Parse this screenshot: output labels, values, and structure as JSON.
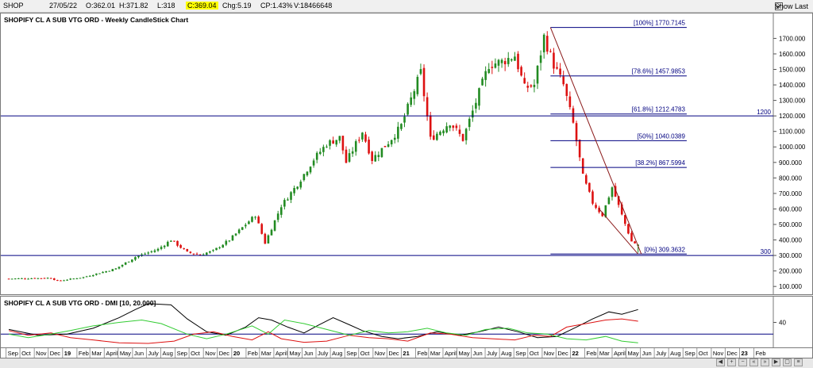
{
  "header": {
    "symbol": "SHOP",
    "date": "27/05/22",
    "open": "O:362.01",
    "high": "H:371.82",
    "low": "L:318",
    "close": "C:369.04",
    "change": "Chg:5.19",
    "change_pct": "CP:1.43%",
    "volume": "V:18466648",
    "show_last_label": "Show Last"
  },
  "price_panel": {
    "title": "SHOPIFY CL A SUB VTG ORD - Weekly CandleStick Chart"
  },
  "dmi_panel": {
    "title": "SHOPIFY CL A SUB VTG ORD - DMI [10, 20.000]"
  },
  "colors": {
    "up": "#228B22",
    "down": "#dd1111",
    "level": "#000080",
    "trend": "#8b1a1a",
    "dmi_adx": "#000000",
    "dmi_minus": "#dd1111",
    "dmi_plus": "#33cc33",
    "dmi_ref": "#000080"
  },
  "chart_data": [
    {
      "type": "candlestick",
      "title": "SHOPIFY CL A SUB VTG ORD - Weekly CandleStick Chart",
      "ylim": [
        60,
        1830
      ],
      "y_ticks": [
        100,
        200,
        300,
        400,
        500,
        600,
        700,
        800,
        900,
        1000,
        1100,
        1200,
        1300,
        1400,
        1500,
        1600,
        1700
      ],
      "y_tick_labels": [
        "100.000",
        "200.000",
        "300.000",
        "400.000",
        "500.000",
        "600.000",
        "700.000",
        "800.000",
        "900.000",
        "1000.000",
        "1100.000",
        "1200.000",
        "1300.000",
        "1400.000",
        "1500.000",
        "1600.000",
        "1700.000"
      ],
      "horizontal_levels": [
        {
          "value": 1200,
          "label": "1200"
        },
        {
          "value": 300,
          "label": "300"
        }
      ],
      "fibonacci_levels": [
        {
          "value": 1770.7145,
          "label": "[100%] 1770.7145"
        },
        {
          "value": 1457.9853,
          "label": "[78.6%] 1457.9853"
        },
        {
          "value": 1212.4783,
          "label": "[61.8%] 1212.4783"
        },
        {
          "value": 1040.0389,
          "label": "[50%] 1040.0389"
        },
        {
          "value": 867.5994,
          "label": "[38.2%] 867.5994"
        },
        {
          "value": 309.3632,
          "label": "[0%] 309.3632"
        }
      ],
      "trendlines": [
        {
          "from": {
            "x": "2021-11-19",
            "y": 1770
          },
          "to": {
            "x": "2022-06-03",
            "y": 309
          }
        },
        {
          "from": {
            "x": "2022-03-04",
            "y": 600
          },
          "to": {
            "x": "2022-05-27",
            "y": 309
          }
        }
      ],
      "x_axis": {
        "labels": [
          "Sep",
          "Oct",
          "Nov",
          "Dec",
          "19",
          "Feb",
          "Mar",
          "April",
          "May",
          "Jun",
          "July",
          "Aug",
          "Sep",
          "Oct",
          "Nov",
          "Dec",
          "20",
          "Feb",
          "Mar",
          "April",
          "May",
          "Jun",
          "July",
          "Aug",
          "Sep",
          "Oct",
          "Nov",
          "Dec",
          "21",
          "Feb",
          "Mar",
          "April",
          "May",
          "Jun",
          "July",
          "Aug",
          "Sep",
          "Oct",
          "Nov",
          "Dec",
          "22",
          "Feb",
          "Mar",
          "April",
          "May",
          "Jun",
          "July",
          "Aug",
          "Sep",
          "Oct",
          "Nov",
          "Dec",
          "23",
          "Feb"
        ],
        "bold_labels": [
          "19",
          "20",
          "21",
          "22",
          "23"
        ]
      },
      "weekly_close_anchors": [
        {
          "x": "2018-09-07",
          "y": 150
        },
        {
          "x": "2018-12-07",
          "y": 155
        },
        {
          "x": "2018-12-21",
          "y": 135
        },
        {
          "x": "2019-02-15",
          "y": 160
        },
        {
          "x": "2019-04-26",
          "y": 215
        },
        {
          "x": "2019-06-07",
          "y": 290
        },
        {
          "x": "2019-07-26",
          "y": 340
        },
        {
          "x": "2019-08-23",
          "y": 400
        },
        {
          "x": "2019-09-27",
          "y": 320
        },
        {
          "x": "2019-10-25",
          "y": 305
        },
        {
          "x": "2019-11-22",
          "y": 330
        },
        {
          "x": "2019-12-27",
          "y": 400
        },
        {
          "x": "2020-02-21",
          "y": 560
        },
        {
          "x": "2020-03-13",
          "y": 380
        },
        {
          "x": "2020-04-17",
          "y": 620
        },
        {
          "x": "2020-05-22",
          "y": 760
        },
        {
          "x": "2020-06-26",
          "y": 920
        },
        {
          "x": "2020-07-24",
          "y": 1020
        },
        {
          "x": "2020-08-21",
          "y": 1060
        },
        {
          "x": "2020-09-04",
          "y": 900
        },
        {
          "x": "2020-10-09",
          "y": 1100
        },
        {
          "x": "2020-10-30",
          "y": 920
        },
        {
          "x": "2020-12-04",
          "y": 1030
        },
        {
          "x": "2020-12-31",
          "y": 1130
        },
        {
          "x": "2021-02-12",
          "y": 1480
        },
        {
          "x": "2021-03-05",
          "y": 1050
        },
        {
          "x": "2021-04-16",
          "y": 1160
        },
        {
          "x": "2021-05-14",
          "y": 1050
        },
        {
          "x": "2021-06-11",
          "y": 1290
        },
        {
          "x": "2021-07-09",
          "y": 1530
        },
        {
          "x": "2021-08-06",
          "y": 1550
        },
        {
          "x": "2021-09-03",
          "y": 1590
        },
        {
          "x": "2021-09-24",
          "y": 1380
        },
        {
          "x": "2021-10-15",
          "y": 1400
        },
        {
          "x": "2021-11-05",
          "y": 1710
        },
        {
          "x": "2021-11-26",
          "y": 1530
        },
        {
          "x": "2021-12-17",
          "y": 1400
        },
        {
          "x": "2022-01-07",
          "y": 1150
        },
        {
          "x": "2022-01-28",
          "y": 810
        },
        {
          "x": "2022-02-18",
          "y": 640
        },
        {
          "x": "2022-03-11",
          "y": 560
        },
        {
          "x": "2022-04-01",
          "y": 740
        },
        {
          "x": "2022-04-22",
          "y": 560
        },
        {
          "x": "2022-05-13",
          "y": 390
        },
        {
          "x": "2022-05-27",
          "y": 369
        }
      ],
      "last_bar": {
        "x": "2022-05-27",
        "open": 362.01,
        "high": 371.82,
        "low": 318,
        "close": 369.04
      }
    },
    {
      "type": "line",
      "title": "SHOPIFY CL A SUB VTG ORD - DMI [10, 20.000]",
      "ylim": [
        0,
        80
      ],
      "y_ticks": [
        40
      ],
      "reference_level": 20,
      "series": [
        {
          "color": "#000000",
          "points": [
            {
              "x": "2018-09-07",
              "y": 28
            },
            {
              "x": "2018-11-09",
              "y": 18
            },
            {
              "x": "2019-01-11",
              "y": 20
            },
            {
              "x": "2019-03-08",
              "y": 30
            },
            {
              "x": "2019-05-03",
              "y": 48
            },
            {
              "x": "2019-06-07",
              "y": 62
            },
            {
              "x": "2019-07-05",
              "y": 72
            },
            {
              "x": "2019-08-23",
              "y": 70
            },
            {
              "x": "2019-09-27",
              "y": 46
            },
            {
              "x": "2019-11-08",
              "y": 24
            },
            {
              "x": "2019-12-20",
              "y": 18
            },
            {
              "x": "2020-01-31",
              "y": 32
            },
            {
              "x": "2020-02-28",
              "y": 48
            },
            {
              "x": "2020-03-27",
              "y": 44
            },
            {
              "x": "2020-05-01",
              "y": 32
            },
            {
              "x": "2020-06-05",
              "y": 22
            },
            {
              "x": "2020-07-03",
              "y": 34
            },
            {
              "x": "2020-08-07",
              "y": 48
            },
            {
              "x": "2020-09-11",
              "y": 36
            },
            {
              "x": "2020-10-09",
              "y": 26
            },
            {
              "x": "2020-11-20",
              "y": 16
            },
            {
              "x": "2020-12-25",
              "y": 12
            },
            {
              "x": "2021-02-05",
              "y": 16
            },
            {
              "x": "2021-03-19",
              "y": 24
            },
            {
              "x": "2021-05-07",
              "y": 18
            },
            {
              "x": "2021-06-18",
              "y": 24
            },
            {
              "x": "2021-07-30",
              "y": 32
            },
            {
              "x": "2021-09-10",
              "y": 24
            },
            {
              "x": "2021-10-22",
              "y": 14
            },
            {
              "x": "2021-12-03",
              "y": 16
            },
            {
              "x": "2022-01-14",
              "y": 32
            },
            {
              "x": "2022-02-18",
              "y": 46
            },
            {
              "x": "2022-03-25",
              "y": 58
            },
            {
              "x": "2022-04-22",
              "y": 54
            },
            {
              "x": "2022-05-27",
              "y": 62
            }
          ]
        },
        {
          "color": "#dd1111",
          "points": [
            {
              "x": "2018-09-07",
              "y": 26
            },
            {
              "x": "2018-10-19",
              "y": 18
            },
            {
              "x": "2018-12-07",
              "y": 22
            },
            {
              "x": "2019-01-18",
              "y": 14
            },
            {
              "x": "2019-03-08",
              "y": 10
            },
            {
              "x": "2019-05-03",
              "y": 5
            },
            {
              "x": "2019-07-05",
              "y": 4
            },
            {
              "x": "2019-08-30",
              "y": 8
            },
            {
              "x": "2019-10-11",
              "y": 20
            },
            {
              "x": "2019-11-22",
              "y": 24
            },
            {
              "x": "2020-01-03",
              "y": 16
            },
            {
              "x": "2020-02-14",
              "y": 10
            },
            {
              "x": "2020-03-20",
              "y": 24
            },
            {
              "x": "2020-04-17",
              "y": 12
            },
            {
              "x": "2020-06-05",
              "y": 6
            },
            {
              "x": "2020-07-24",
              "y": 8
            },
            {
              "x": "2020-09-11",
              "y": 18
            },
            {
              "x": "2020-10-23",
              "y": 14
            },
            {
              "x": "2020-12-04",
              "y": 12
            },
            {
              "x": "2021-01-15",
              "y": 8
            },
            {
              "x": "2021-03-05",
              "y": 22
            },
            {
              "x": "2021-04-16",
              "y": 20
            },
            {
              "x": "2021-06-04",
              "y": 14
            },
            {
              "x": "2021-07-16",
              "y": 12
            },
            {
              "x": "2021-09-03",
              "y": 10
            },
            {
              "x": "2021-10-15",
              "y": 18
            },
            {
              "x": "2021-11-19",
              "y": 16
            },
            {
              "x": "2021-12-24",
              "y": 32
            },
            {
              "x": "2022-02-04",
              "y": 38
            },
            {
              "x": "2022-03-18",
              "y": 44
            },
            {
              "x": "2022-04-22",
              "y": 46
            },
            {
              "x": "2022-05-27",
              "y": 42
            }
          ]
        },
        {
          "color": "#33cc33",
          "points": [
            {
              "x": "2018-09-07",
              "y": 20
            },
            {
              "x": "2018-10-19",
              "y": 14
            },
            {
              "x": "2018-12-07",
              "y": 20
            },
            {
              "x": "2019-01-18",
              "y": 26
            },
            {
              "x": "2019-03-08",
              "y": 34
            },
            {
              "x": "2019-05-03",
              "y": 40
            },
            {
              "x": "2019-06-21",
              "y": 44
            },
            {
              "x": "2019-08-02",
              "y": 38
            },
            {
              "x": "2019-09-27",
              "y": 20
            },
            {
              "x": "2019-11-08",
              "y": 12
            },
            {
              "x": "2019-12-20",
              "y": 20
            },
            {
              "x": "2020-02-14",
              "y": 34
            },
            {
              "x": "2020-03-20",
              "y": 20
            },
            {
              "x": "2020-04-24",
              "y": 44
            },
            {
              "x": "2020-06-05",
              "y": 38
            },
            {
              "x": "2020-07-24",
              "y": 28
            },
            {
              "x": "2020-09-11",
              "y": 18
            },
            {
              "x": "2020-10-23",
              "y": 26
            },
            {
              "x": "2020-12-04",
              "y": 22
            },
            {
              "x": "2021-01-15",
              "y": 24
            },
            {
              "x": "2021-02-26",
              "y": 30
            },
            {
              "x": "2021-04-09",
              "y": 22
            },
            {
              "x": "2021-05-21",
              "y": 18
            },
            {
              "x": "2021-07-02",
              "y": 28
            },
            {
              "x": "2021-08-20",
              "y": 30
            },
            {
              "x": "2021-10-01",
              "y": 22
            },
            {
              "x": "2021-11-12",
              "y": 20
            },
            {
              "x": "2021-12-24",
              "y": 12
            },
            {
              "x": "2022-02-04",
              "y": 10
            },
            {
              "x": "2022-03-18",
              "y": 16
            },
            {
              "x": "2022-04-22",
              "y": 8
            },
            {
              "x": "2022-05-27",
              "y": 5
            }
          ]
        }
      ]
    }
  ]
}
